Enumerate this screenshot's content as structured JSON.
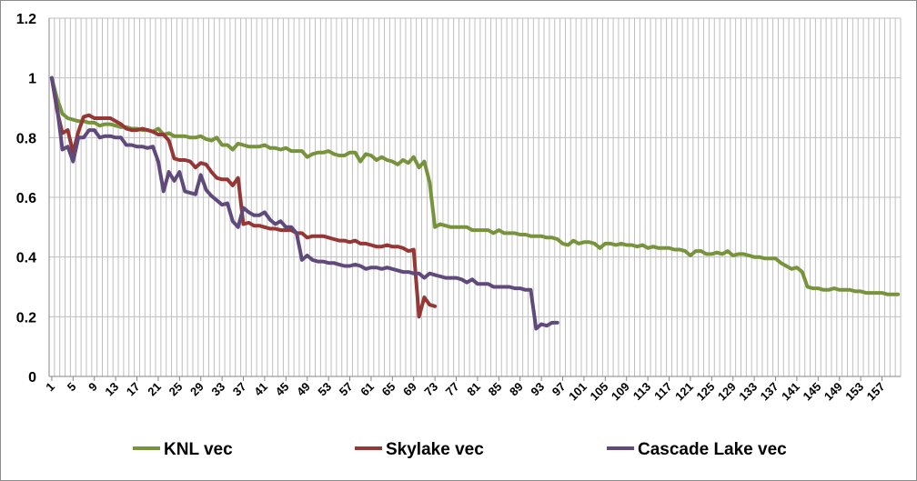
{
  "chart_data": {
    "type": "line",
    "title": "",
    "xlabel": "",
    "ylabel": "",
    "ylim": [
      0,
      1.2
    ],
    "yticks": [
      "0",
      "0.2",
      "0.4",
      "0.6",
      "0.8",
      "1",
      "1.2"
    ],
    "xlim": [
      1,
      160
    ],
    "xticks": [
      "1",
      "5",
      "9",
      "13",
      "17",
      "21",
      "25",
      "29",
      "33",
      "37",
      "41",
      "45",
      "49",
      "53",
      "57",
      "61",
      "65",
      "69",
      "73",
      "77",
      "81",
      "85",
      "89",
      "93",
      "97",
      "101",
      "105",
      "109",
      "113",
      "117",
      "121",
      "125",
      "129",
      "133",
      "137",
      "141",
      "145",
      "149",
      "153",
      "157"
    ],
    "grid": true,
    "legend": "bottom",
    "series": [
      {
        "name": "KNL vec",
        "color": "#77933c",
        "x": [
          1,
          2,
          3,
          4,
          5,
          6,
          7,
          8,
          9,
          10,
          11,
          12,
          13,
          14,
          15,
          16,
          17,
          18,
          19,
          20,
          21,
          22,
          23,
          24,
          25,
          26,
          27,
          28,
          29,
          30,
          31,
          32,
          33,
          34,
          35,
          36,
          37,
          38,
          39,
          40,
          41,
          42,
          43,
          44,
          45,
          46,
          47,
          48,
          49,
          50,
          51,
          52,
          53,
          54,
          55,
          56,
          57,
          58,
          59,
          60,
          61,
          62,
          63,
          64,
          65,
          66,
          67,
          68,
          69,
          70,
          71,
          72,
          73,
          74,
          75,
          76,
          77,
          78,
          79,
          80,
          81,
          82,
          83,
          84,
          85,
          86,
          87,
          88,
          89,
          90,
          91,
          92,
          93,
          94,
          95,
          96,
          97,
          98,
          99,
          100,
          101,
          102,
          103,
          104,
          105,
          106,
          107,
          108,
          109,
          110,
          111,
          112,
          113,
          114,
          115,
          116,
          117,
          118,
          119,
          120,
          121,
          122,
          123,
          124,
          125,
          126,
          127,
          128,
          129,
          130,
          131,
          132,
          133,
          134,
          135,
          136,
          137,
          138,
          139,
          140,
          141,
          142,
          143,
          144,
          145,
          146,
          147,
          148,
          149,
          150,
          151,
          152,
          153,
          154,
          155,
          156,
          157,
          158,
          159,
          160
        ],
        "y": [
          1.0,
          0.93,
          0.88,
          0.865,
          0.86,
          0.855,
          0.855,
          0.85,
          0.85,
          0.84,
          0.845,
          0.845,
          0.84,
          0.835,
          0.835,
          0.83,
          0.83,
          0.825,
          0.825,
          0.82,
          0.83,
          0.81,
          0.815,
          0.805,
          0.805,
          0.805,
          0.8,
          0.8,
          0.805,
          0.795,
          0.79,
          0.8,
          0.775,
          0.775,
          0.76,
          0.78,
          0.775,
          0.77,
          0.77,
          0.77,
          0.775,
          0.765,
          0.765,
          0.76,
          0.765,
          0.755,
          0.755,
          0.755,
          0.735,
          0.745,
          0.75,
          0.75,
          0.755,
          0.745,
          0.74,
          0.74,
          0.75,
          0.75,
          0.72,
          0.745,
          0.74,
          0.725,
          0.735,
          0.725,
          0.72,
          0.71,
          0.725,
          0.715,
          0.735,
          0.7,
          0.72,
          0.65,
          0.5,
          0.51,
          0.505,
          0.5,
          0.5,
          0.5,
          0.5,
          0.49,
          0.49,
          0.49,
          0.49,
          0.48,
          0.49,
          0.48,
          0.48,
          0.48,
          0.475,
          0.475,
          0.47,
          0.47,
          0.47,
          0.465,
          0.465,
          0.46,
          0.445,
          0.44,
          0.455,
          0.445,
          0.45,
          0.45,
          0.445,
          0.43,
          0.445,
          0.445,
          0.44,
          0.445,
          0.44,
          0.44,
          0.435,
          0.44,
          0.43,
          0.435,
          0.43,
          0.43,
          0.43,
          0.425,
          0.425,
          0.42,
          0.405,
          0.42,
          0.42,
          0.41,
          0.41,
          0.415,
          0.41,
          0.42,
          0.405,
          0.41,
          0.41,
          0.405,
          0.4,
          0.4,
          0.395,
          0.395,
          0.395,
          0.38,
          0.37,
          0.36,
          0.365,
          0.35,
          0.3,
          0.295,
          0.295,
          0.29,
          0.29,
          0.295,
          0.29,
          0.29,
          0.29,
          0.285,
          0.285,
          0.28,
          0.28,
          0.28,
          0.28,
          0.275,
          0.275,
          0.275
        ]
      },
      {
        "name": "Skylake vec",
        "color": "#953735",
        "x": [
          1,
          2,
          3,
          4,
          5,
          6,
          7,
          8,
          9,
          10,
          11,
          12,
          13,
          14,
          15,
          16,
          17,
          18,
          19,
          20,
          21,
          22,
          23,
          24,
          25,
          26,
          27,
          28,
          29,
          30,
          31,
          32,
          33,
          34,
          35,
          36,
          37,
          38,
          39,
          40,
          41,
          42,
          43,
          44,
          45,
          46,
          47,
          48,
          49,
          50,
          51,
          52,
          53,
          54,
          55,
          56,
          57,
          58,
          59,
          60,
          61,
          62,
          63,
          64,
          65,
          66,
          67,
          68,
          69,
          70,
          71,
          72,
          73
        ],
        "y": [
          1.0,
          0.89,
          0.815,
          0.825,
          0.75,
          0.82,
          0.87,
          0.875,
          0.865,
          0.865,
          0.865,
          0.865,
          0.855,
          0.845,
          0.83,
          0.825,
          0.825,
          0.83,
          0.825,
          0.82,
          0.81,
          0.81,
          0.79,
          0.73,
          0.725,
          0.725,
          0.72,
          0.7,
          0.715,
          0.71,
          0.685,
          0.665,
          0.66,
          0.66,
          0.64,
          0.665,
          0.51,
          0.515,
          0.505,
          0.505,
          0.5,
          0.495,
          0.495,
          0.49,
          0.49,
          0.49,
          0.48,
          0.48,
          0.465,
          0.47,
          0.47,
          0.47,
          0.465,
          0.46,
          0.455,
          0.455,
          0.45,
          0.455,
          0.445,
          0.445,
          0.44,
          0.435,
          0.435,
          0.44,
          0.435,
          0.435,
          0.43,
          0.42,
          0.425,
          0.2,
          0.265,
          0.24,
          0.235
        ]
      },
      {
        "name": "Cascade Lake vec",
        "color": "#604a7b",
        "x": [
          1,
          2,
          3,
          4,
          5,
          6,
          7,
          8,
          9,
          10,
          11,
          12,
          13,
          14,
          15,
          16,
          17,
          18,
          19,
          20,
          21,
          22,
          23,
          24,
          25,
          26,
          27,
          28,
          29,
          30,
          31,
          32,
          33,
          34,
          35,
          36,
          37,
          38,
          39,
          40,
          41,
          42,
          43,
          44,
          45,
          46,
          47,
          48,
          49,
          50,
          51,
          52,
          53,
          54,
          55,
          56,
          57,
          58,
          59,
          60,
          61,
          62,
          63,
          64,
          65,
          66,
          67,
          68,
          69,
          70,
          71,
          72,
          73,
          74,
          75,
          76,
          77,
          78,
          79,
          80,
          81,
          82,
          83,
          84,
          85,
          86,
          87,
          88,
          89,
          90,
          91,
          92,
          93,
          94,
          95,
          96
        ],
        "y": [
          1.0,
          0.9,
          0.76,
          0.77,
          0.72,
          0.8,
          0.8,
          0.825,
          0.825,
          0.8,
          0.805,
          0.805,
          0.8,
          0.8,
          0.775,
          0.775,
          0.77,
          0.77,
          0.765,
          0.77,
          0.72,
          0.62,
          0.685,
          0.655,
          0.685,
          0.62,
          0.615,
          0.61,
          0.675,
          0.625,
          0.605,
          0.59,
          0.575,
          0.58,
          0.52,
          0.5,
          0.565,
          0.55,
          0.54,
          0.54,
          0.55,
          0.525,
          0.51,
          0.52,
          0.5,
          0.5,
          0.48,
          0.39,
          0.405,
          0.39,
          0.385,
          0.385,
          0.38,
          0.38,
          0.375,
          0.37,
          0.37,
          0.375,
          0.37,
          0.36,
          0.365,
          0.365,
          0.36,
          0.365,
          0.36,
          0.355,
          0.35,
          0.35,
          0.345,
          0.345,
          0.33,
          0.345,
          0.34,
          0.335,
          0.33,
          0.33,
          0.33,
          0.325,
          0.315,
          0.325,
          0.31,
          0.31,
          0.31,
          0.3,
          0.3,
          0.3,
          0.3,
          0.295,
          0.295,
          0.29,
          0.29,
          0.16,
          0.175,
          0.17,
          0.18,
          0.18
        ]
      }
    ]
  }
}
